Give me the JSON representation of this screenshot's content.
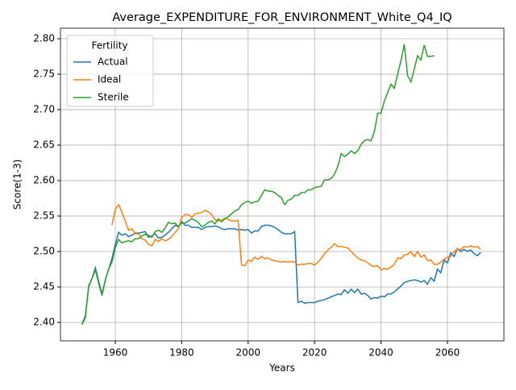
{
  "chart_data": {
    "type": "line",
    "title": "Average_EXPENDITURE_FOR_ENVIRONMENT_White_Q4_IQ",
    "xlabel": "Years",
    "ylabel": "Score(1-3)",
    "legend_title": "Fertility",
    "legend": "upper left",
    "grid": true,
    "xlim": [
      1943.5,
      2077
    ],
    "ylim": [
      2.374,
      2.8148
    ],
    "xticks": [
      1960,
      1980,
      2000,
      2020,
      2040,
      2060
    ],
    "yticks": [
      {
        "value": 2.4,
        "label": "2.40"
      },
      2.45,
      {
        "value": 2.5,
        "label": "2.50"
      },
      2.55,
      {
        "value": 2.6,
        "label": "2.60"
      },
      2.65,
      {
        "value": 2.7,
        "label": "2.70"
      },
      2.75,
      {
        "value": 2.8,
        "label": "2.80"
      }
    ],
    "x": [
      1950,
      1951,
      1952,
      1953,
      1954,
      1955,
      1956,
      1957,
      1958,
      1959,
      1960,
      1961,
      1962,
      1963,
      1964,
      1965,
      1966,
      1967,
      1968,
      1969,
      1970,
      1971,
      1972,
      1973,
      1974,
      1975,
      1976,
      1977,
      1978,
      1979,
      1980,
      1981,
      1982,
      1983,
      1984,
      1985,
      1986,
      1987,
      1988,
      1989,
      1990,
      1991,
      1992,
      1993,
      1994,
      1995,
      1996,
      1997,
      1998,
      1999,
      2000,
      2001,
      2002,
      2003,
      2004,
      2005,
      2006,
      2007,
      2008,
      2009,
      2010,
      2011,
      2012,
      2013,
      2014,
      2015,
      2016,
      2017,
      2018,
      2019,
      2020,
      2021,
      2022,
      2023,
      2024,
      2025,
      2026,
      2027,
      2028,
      2029,
      2030,
      2031,
      2032,
      2033,
      2034,
      2035,
      2036,
      2037,
      2038,
      2039,
      2040,
      2041,
      2042,
      2043,
      2044,
      2045,
      2046,
      2047,
      2048,
      2049,
      2050,
      2051,
      2052,
      2053,
      2054,
      2055,
      2056,
      2057,
      2058,
      2059,
      2060,
      2061,
      2062,
      2063,
      2064,
      2065,
      2066,
      2067,
      2068,
      2069,
      2070
    ],
    "series": [
      {
        "name": "Actual",
        "color": "#1f77b4",
        "values": [
          2.397,
          2.41,
          2.45,
          2.462,
          2.477,
          2.458,
          2.44,
          2.46,
          2.475,
          2.49,
          2.51,
          2.527,
          2.523,
          2.525,
          2.521,
          2.523,
          2.526,
          2.526,
          2.527,
          2.528,
          2.52,
          2.522,
          2.525,
          2.519,
          2.52,
          2.523,
          2.527,
          2.532,
          2.537,
          2.535,
          2.542,
          2.537,
          2.537,
          2.534,
          2.534,
          2.534,
          2.531,
          2.534,
          2.535,
          2.535,
          2.536,
          2.535,
          2.532,
          2.531,
          2.532,
          2.532,
          2.532,
          2.53,
          2.531,
          2.53,
          2.531,
          2.526,
          2.529,
          2.529,
          2.535,
          2.537,
          2.537,
          2.536,
          2.534,
          2.531,
          2.527,
          2.525,
          2.525,
          2.525,
          2.528,
          2.428,
          2.43,
          2.427,
          2.428,
          2.428,
          2.428,
          2.43,
          2.431,
          2.432,
          2.434,
          2.436,
          2.438,
          2.44,
          2.439,
          2.446,
          2.441,
          2.447,
          2.442,
          2.447,
          2.44,
          2.441,
          2.438,
          2.433,
          2.435,
          2.434,
          2.437,
          2.436,
          2.44,
          2.44,
          2.443,
          2.447,
          2.451,
          2.456,
          2.458,
          2.459,
          2.46,
          2.459,
          2.457,
          2.459,
          2.454,
          2.463,
          2.458,
          2.475,
          2.47,
          2.488,
          2.484,
          2.498,
          2.493,
          2.504,
          2.5,
          2.503,
          2.5,
          2.502,
          2.497,
          2.494,
          2.499
        ]
      },
      {
        "name": "Ideal",
        "color": "#ff7f0e",
        "values": [
          null,
          null,
          null,
          null,
          null,
          null,
          null,
          null,
          null,
          2.537,
          2.56,
          2.566,
          2.555,
          2.543,
          2.53,
          2.532,
          2.525,
          2.525,
          2.518,
          2.516,
          2.51,
          2.508,
          2.517,
          2.514,
          2.518,
          2.515,
          2.517,
          2.521,
          2.527,
          2.532,
          2.548,
          2.552,
          2.552,
          2.548,
          2.553,
          2.554,
          2.555,
          2.558,
          2.556,
          2.552,
          2.545,
          2.543,
          2.544,
          2.547,
          2.545,
          2.543,
          2.543,
          2.544,
          2.481,
          2.48,
          2.488,
          2.486,
          2.492,
          2.489,
          2.493,
          2.49,
          2.491,
          2.488,
          2.487,
          2.486,
          2.485,
          2.486,
          2.485,
          2.486,
          2.485,
          2.481,
          2.482,
          2.482,
          2.483,
          2.483,
          2.481,
          2.485,
          2.49,
          2.497,
          2.502,
          2.506,
          2.511,
          2.507,
          2.507,
          2.506,
          2.505,
          2.5,
          2.495,
          2.491,
          2.488,
          2.487,
          2.484,
          2.48,
          2.479,
          2.48,
          2.474,
          2.476,
          2.475,
          2.478,
          2.482,
          2.491,
          2.49,
          2.495,
          2.496,
          2.5,
          2.493,
          2.5,
          2.492,
          2.495,
          2.487,
          2.488,
          2.482,
          2.482,
          2.485,
          2.489,
          2.492,
          2.493,
          2.5,
          2.503,
          2.503,
          2.507,
          2.506,
          2.508,
          2.506,
          2.507,
          2.503
        ]
      },
      {
        "name": "Sterile",
        "color": "#2ca02c",
        "values": [
          2.397,
          2.407,
          2.452,
          2.462,
          2.474,
          2.455,
          2.438,
          2.46,
          2.475,
          2.485,
          2.505,
          2.517,
          2.512,
          2.514,
          2.515,
          2.514,
          2.518,
          2.518,
          2.522,
          2.524,
          2.523,
          2.52,
          2.528,
          2.53,
          2.527,
          2.533,
          2.541,
          2.539,
          2.54,
          2.535,
          2.54,
          2.54,
          2.543,
          2.546,
          2.544,
          2.541,
          2.535,
          2.537,
          2.541,
          2.543,
          2.539,
          2.546,
          2.542,
          2.546,
          2.549,
          2.553,
          2.557,
          2.559,
          2.566,
          2.569,
          2.571,
          2.568,
          2.57,
          2.571,
          2.579,
          2.587,
          2.585,
          2.585,
          2.583,
          2.579,
          2.576,
          2.566,
          2.572,
          2.574,
          2.579,
          2.579,
          2.583,
          2.583,
          2.587,
          2.587,
          2.59,
          2.591,
          2.592,
          2.601,
          2.601,
          2.603,
          2.609,
          2.62,
          2.638,
          2.634,
          2.637,
          2.642,
          2.638,
          2.642,
          2.651,
          2.656,
          2.658,
          2.656,
          2.669,
          2.695,
          2.695,
          2.712,
          2.724,
          2.736,
          2.73,
          2.75,
          2.769,
          2.792,
          2.748,
          2.739,
          2.757,
          2.776,
          2.77,
          2.791,
          2.775,
          2.775,
          2.776,
          null,
          null,
          null,
          null,
          null,
          null,
          null,
          null,
          null,
          null,
          null,
          null,
          null,
          null
        ]
      }
    ]
  }
}
